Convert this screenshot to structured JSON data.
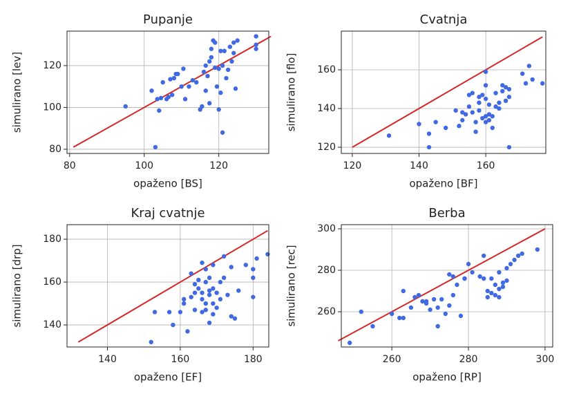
{
  "chart_data": [
    {
      "type": "scatter",
      "title": "Pupanje",
      "xlabel": "opaženo [BS]",
      "ylabel": "simulirano [lev]",
      "xlim": [
        79.3,
        133.4
      ],
      "ylim": [
        78,
        136.5
      ],
      "xticks": [
        80,
        100,
        120
      ],
      "yticks": [
        80,
        100,
        120
      ],
      "grid": true,
      "color": "#4169e1",
      "x": [
        95,
        102,
        103,
        103.5,
        104,
        104.5,
        105,
        106,
        106.5,
        107,
        107.5,
        108,
        108.5,
        109,
        110,
        110.5,
        111,
        112,
        113,
        114,
        115,
        115.5,
        116,
        116.5,
        116.5,
        117,
        117.5,
        117.5,
        118,
        118,
        118.5,
        119,
        119.5,
        120,
        120,
        120.5,
        120.5,
        121,
        121,
        121.5,
        122,
        122.5,
        123,
        123.5,
        124,
        124.5,
        124,
        130,
        130,
        130,
        125,
        119
      ],
      "y": [
        100.5,
        108,
        81,
        104,
        98.5,
        104.5,
        112,
        104,
        105,
        113.5,
        106,
        114,
        116,
        116,
        110,
        118.5,
        104,
        110,
        113,
        112,
        99,
        100.5,
        117,
        108,
        120,
        115,
        122,
        102,
        124,
        128,
        132,
        119,
        110,
        99,
        118.5,
        127,
        107,
        88,
        120,
        127,
        114,
        118,
        129,
        122,
        131,
        109,
        126,
        134,
        128,
        130,
        132,
        131
      ],
      "line": {
        "x": [
          81,
          134
        ],
        "y": [
          81,
          134
        ],
        "color": "#d62728"
      }
    },
    {
      "type": "scatter",
      "title": "Cvatnja",
      "xlabel": "opaženo [BF]",
      "ylabel": "simulirano [flo]",
      "xlim": [
        116.7,
        178
      ],
      "ylim": [
        116.8,
        180
      ],
      "xticks": [
        120,
        140,
        160
      ],
      "yticks": [
        120,
        140,
        160
      ],
      "grid": true,
      "color": "#4169e1",
      "x": [
        131,
        140,
        143,
        143,
        145,
        148,
        151,
        152,
        153,
        153,
        154,
        155,
        155,
        156,
        156,
        157,
        157,
        158,
        158,
        158,
        159,
        159,
        160,
        160,
        160,
        160,
        161,
        161,
        161,
        162,
        162,
        163,
        163,
        164,
        164,
        165,
        165,
        166,
        166,
        167,
        167,
        167,
        171,
        172,
        173,
        174,
        177,
        160
      ],
      "y": [
        126,
        132,
        120,
        127,
        133,
        130,
        139,
        131,
        134,
        138,
        137,
        141,
        147,
        138,
        148,
        128,
        133,
        139,
        143,
        146,
        147,
        135,
        152,
        145,
        136,
        133,
        134,
        142,
        137,
        136,
        130,
        141,
        148,
        140,
        143,
        149,
        152,
        151,
        144,
        146,
        120,
        150,
        158,
        153,
        162,
        155,
        153,
        159
      ],
      "line": {
        "x": [
          120,
          177
        ],
        "y": [
          120,
          177
        ],
        "color": "#d62728"
      }
    },
    {
      "type": "scatter",
      "title": "Kraj cvatnje",
      "xlabel": "opaženo [EF]",
      "ylabel": "simulirano [drp]",
      "xlim": [
        128.9,
        184.3
      ],
      "ylim": [
        129.7,
        186.8
      ],
      "xticks": [
        140,
        160,
        180
      ],
      "yticks": [
        140,
        160,
        180
      ],
      "grid": true,
      "color": "#4169e1",
      "x": [
        152,
        153,
        157,
        158,
        160,
        161,
        161,
        162,
        163,
        163,
        164,
        164,
        164,
        165,
        165,
        166,
        166,
        166,
        166,
        167,
        167,
        167,
        167,
        168,
        168,
        168,
        168,
        169,
        169,
        169,
        170,
        170,
        171,
        171,
        172,
        172,
        173,
        174,
        174,
        175,
        176,
        178,
        180,
        180,
        180,
        181,
        184,
        169
      ],
      "y": [
        132,
        146,
        146,
        140,
        146,
        152,
        150,
        137,
        153,
        164,
        159,
        155,
        147,
        157,
        161,
        146,
        155,
        169,
        152,
        147,
        160,
        166,
        150,
        141,
        162,
        156,
        154,
        150,
        145,
        157,
        148,
        155,
        160,
        152,
        172,
        162,
        154,
        144,
        167,
        143,
        156,
        168,
        162,
        153,
        166,
        171,
        173,
        168
      ],
      "line": {
        "x": [
          132,
          184
        ],
        "y": [
          132,
          184
        ],
        "color": "#d62728"
      }
    },
    {
      "type": "scatter",
      "title": "Berba",
      "xlabel": "opaženo [RP]",
      "ylabel": "simulirano [rec]",
      "xlim": [
        246.8,
        302
      ],
      "ylim": [
        243,
        302
      ],
      "xticks": [
        260,
        280,
        300
      ],
      "yticks": [
        260,
        280,
        300
      ],
      "grid": true,
      "color": "#4169e1",
      "x": [
        249,
        252,
        255,
        260,
        262,
        263,
        263,
        265,
        266,
        267,
        268,
        269,
        269,
        270,
        271,
        272,
        272,
        273,
        274,
        275,
        275,
        276,
        276,
        277,
        278,
        279,
        279,
        280,
        281,
        283,
        284,
        284,
        285,
        285,
        286,
        287,
        287,
        288,
        288,
        288,
        289,
        289,
        290,
        290,
        291,
        292,
        293,
        294,
        298,
        286
      ],
      "y": [
        245,
        260,
        253,
        259,
        257,
        270,
        257,
        262,
        267,
        268,
        265,
        264,
        265,
        261,
        266,
        253,
        262,
        266,
        259,
        278,
        263,
        268,
        277,
        273,
        258,
        276,
        276,
        283,
        279,
        277,
        276,
        287,
        267,
        270,
        269,
        273,
        268,
        279,
        271,
        267,
        272,
        274,
        275,
        281,
        283,
        285,
        287,
        288,
        290,
        276
      ],
      "line": {
        "x": [
          246,
          300
        ],
        "y": [
          246,
          300
        ],
        "color": "#d62728"
      }
    }
  ]
}
